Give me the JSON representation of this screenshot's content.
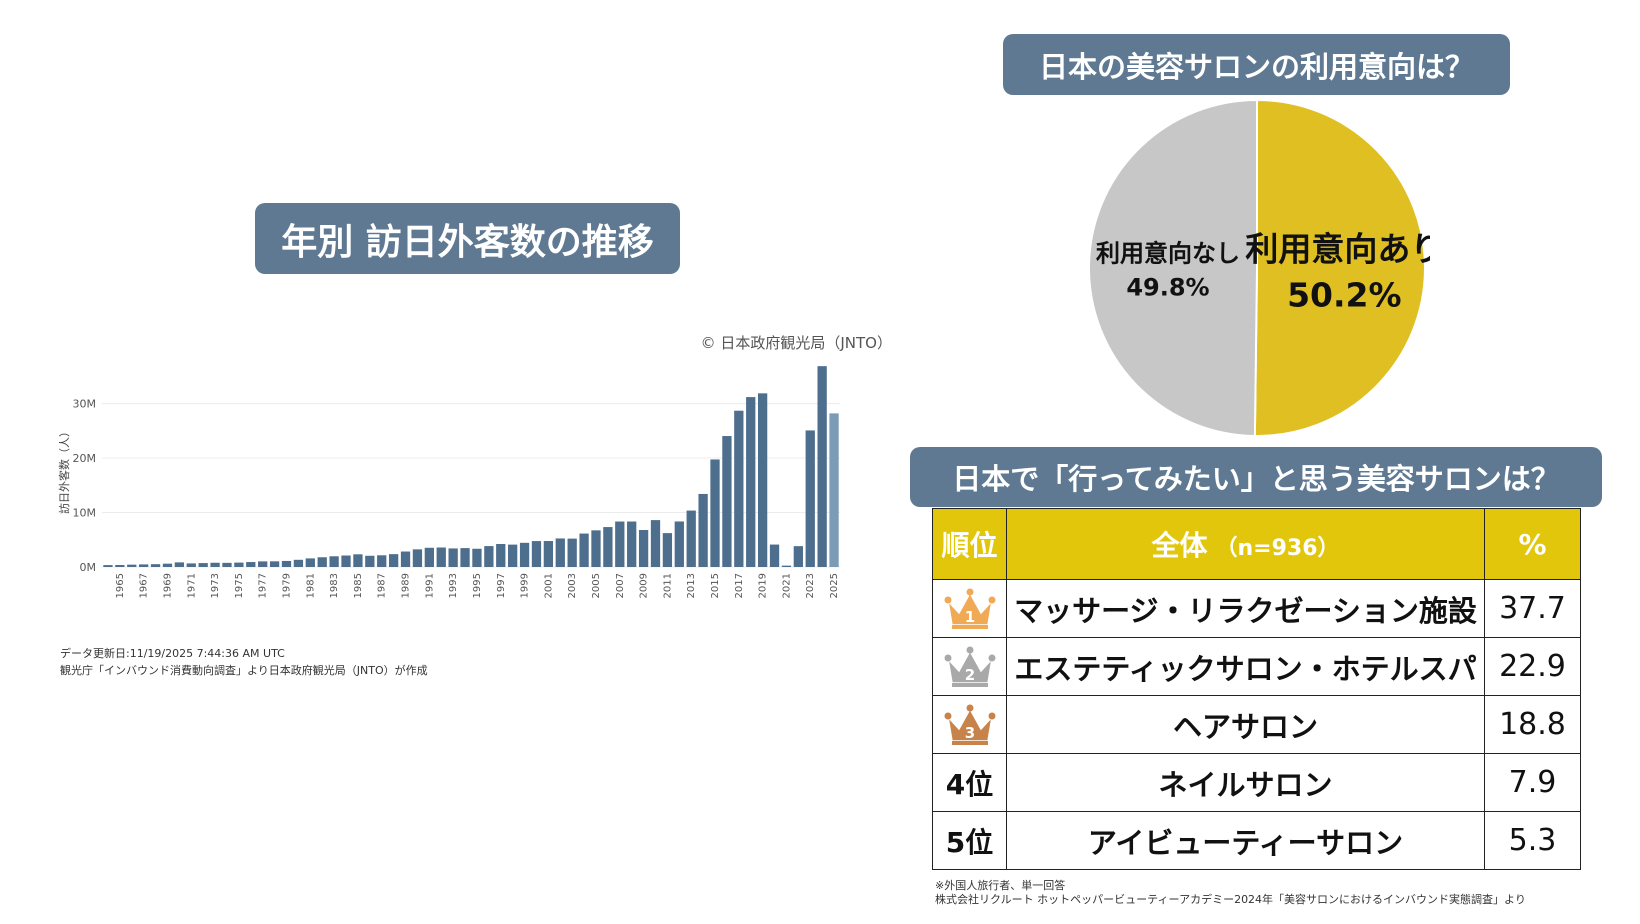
{
  "bar_section": {
    "title": "年別 訪日外客数の推移",
    "note_updated": "データ更新日:11/19/2025 7:44:36 AM UTC",
    "note_source": "観光庁「インバウンド消費動向調査」より日本政府観光局（JNTO）が作成"
  },
  "pie_section": {
    "title": "日本の美容サロンの利用意向は？"
  },
  "table_section": {
    "title": "日本で「行ってみたい」と思う美容サロンは？",
    "header_rank": "順位",
    "header_all": "全体",
    "header_all_sub": "（n=936）",
    "header_pct": "%",
    "rows": [
      {
        "rank": "1",
        "item": "マッサージ・リラクゼーション施設",
        "pct": "37.7"
      },
      {
        "rank": "2",
        "item": "エステティックサロン・ホテルスパ",
        "pct": "22.9"
      },
      {
        "rank": "3",
        "item": "ヘアサロン",
        "pct": "18.8"
      },
      {
        "rank": "4位",
        "item": "ネイルサロン",
        "pct": "7.9"
      },
      {
        "rank": "5位",
        "item": "アイビューティーサロン",
        "pct": "5.3"
      }
    ],
    "crown_colors": [
      "#f0a954",
      "#a9a9a9",
      "#c8834a"
    ],
    "note_1": "※外国人旅行者、単一回答",
    "note_2": "株式会社リクルート ホットペッパービューティーアカデミー2024年「美容サロンにおけるインバウンド実態調査」より"
  },
  "chart_data": [
    {
      "type": "bar",
      "copyright": "© 日本政府観光局（JNTO）",
      "ylabel": "訪日外客数（人）",
      "xlabel": "",
      "ylim": [
        0,
        38
      ],
      "yticks": [
        0,
        10,
        20,
        30
      ],
      "ytick_labels": [
        "0M",
        "10M",
        "20M",
        "30M"
      ],
      "grid": true,
      "bar_color": "#4e6e8e",
      "highlight_color": "#7c9cb6",
      "categories": [
        1964,
        1965,
        1966,
        1967,
        1968,
        1969,
        1970,
        1971,
        1972,
        1973,
        1974,
        1975,
        1976,
        1977,
        1978,
        1979,
        1980,
        1981,
        1982,
        1983,
        1984,
        1985,
        1986,
        1987,
        1988,
        1989,
        1990,
        1991,
        1992,
        1993,
        1994,
        1995,
        1996,
        1997,
        1998,
        1999,
        2000,
        2001,
        2002,
        2003,
        2004,
        2005,
        2006,
        2007,
        2008,
        2009,
        2010,
        2011,
        2012,
        2013,
        2014,
        2015,
        2016,
        2017,
        2018,
        2019,
        2020,
        2021,
        2022,
        2023,
        2024,
        2025
      ],
      "xtick_labels": [
        "1965",
        "1967",
        "1969",
        "1971",
        "1973",
        "1975",
        "1977",
        "1979",
        "1981",
        "1983",
        "1985",
        "1987",
        "1989",
        "1991",
        "1993",
        "1995",
        "1997",
        "1999",
        "2001",
        "2003",
        "2005",
        "2007",
        "2009",
        "2011",
        "2013",
        "2015",
        "2017",
        "2019",
        "2021",
        "2023",
        "2025"
      ],
      "values": [
        0.35,
        0.37,
        0.43,
        0.48,
        0.52,
        0.61,
        0.85,
        0.66,
        0.72,
        0.78,
        0.76,
        0.81,
        0.91,
        1.03,
        1.04,
        1.11,
        1.32,
        1.58,
        1.79,
        1.97,
        2.11,
        2.33,
        2.06,
        2.15,
        2.36,
        2.84,
        3.24,
        3.53,
        3.58,
        3.41,
        3.47,
        3.35,
        3.84,
        4.22,
        4.11,
        4.44,
        4.76,
        4.77,
        5.24,
        5.21,
        6.14,
        6.73,
        7.33,
        8.35,
        8.35,
        6.79,
        8.61,
        6.22,
        8.36,
        10.36,
        13.41,
        19.74,
        24.04,
        28.69,
        31.19,
        31.88,
        4.12,
        0.25,
        3.83,
        25.07,
        36.87,
        28.2
      ]
    },
    {
      "type": "pie",
      "slices": [
        {
          "label": "利用意向あり",
          "value": 50.2,
          "value_label": "50.2%",
          "color": "#e0bf22"
        },
        {
          "label": "利用意向なし",
          "value": 49.8,
          "value_label": "49.8%",
          "color": "#c7c7c7"
        }
      ]
    }
  ]
}
